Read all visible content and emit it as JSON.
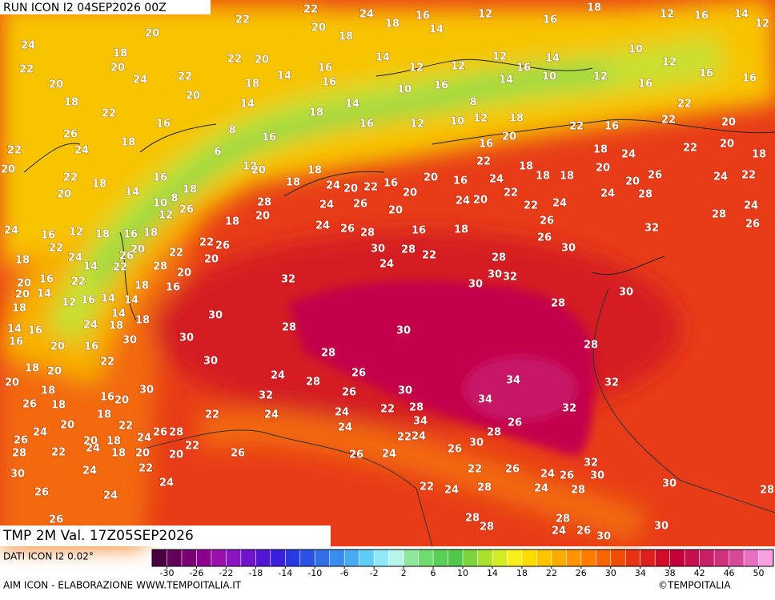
{
  "header": {
    "run": "RUN ICON I2 04SEP2026 00Z"
  },
  "map": {
    "labels": [
      22,
      24,
      16,
      14,
      12,
      16,
      18,
      12,
      16,
      14,
      12,
      22,
      20,
      18,
      18,
      24,
      18,
      20,
      22,
      20,
      22,
      20,
      20,
      24,
      22,
      14,
      16,
      18,
      14,
      12,
      12,
      12,
      16,
      14,
      10,
      12,
      16,
      16,
      18,
      22,
      16,
      20,
      14,
      16,
      14,
      10,
      16,
      8,
      14,
      10,
      12,
      16,
      22,
      26,
      24,
      18,
      8,
      16,
      18,
      16,
      12,
      10,
      12,
      18,
      22,
      16,
      22,
      20,
      22,
      20,
      22,
      20,
      18,
      14,
      16,
      8,
      18,
      6,
      12,
      20,
      18,
      18,
      24,
      20,
      22,
      16,
      20,
      20,
      16,
      22,
      16,
      24,
      20,
      18,
      18,
      18,
      18,
      20,
      20,
      24,
      26,
      22,
      20,
      18,
      24,
      22,
      24,
      26,
      28,
      28,
      24,
      24,
      22,
      22,
      26,
      26,
      20,
      24,
      18,
      16,
      20,
      26,
      24,
      28,
      20,
      18,
      22,
      26,
      20,
      10,
      12,
      26,
      24,
      16,
      12,
      18,
      16,
      18,
      20,
      26,
      22,
      20,
      28,
      16,
      18,
      14,
      22,
      14,
      24,
      22,
      18,
      16,
      22,
      20,
      20,
      18,
      14,
      12,
      16,
      14,
      14,
      24,
      18,
      18,
      14,
      16,
      16,
      20,
      16,
      22,
      30,
      30,
      30,
      30,
      30,
      32,
      28,
      24,
      26,
      28,
      30,
      24,
      28,
      22,
      28,
      30,
      32,
      30,
      30,
      32,
      28,
      30,
      28,
      32,
      30,
      28,
      24,
      28,
      26,
      26,
      32,
      30,
      28,
      34,
      34,
      34,
      32,
      26,
      22,
      24,
      24,
      24,
      22,
      18,
      20,
      20,
      18,
      26,
      18,
      16,
      20,
      18,
      22,
      24,
      26,
      28,
      20,
      24,
      26,
      20,
      18,
      28,
      22,
      24,
      18,
      20,
      20,
      22,
      26,
      30,
      22,
      24,
      24,
      26,
      24,
      26,
      26,
      24,
      22,
      24,
      26,
      30,
      28,
      22,
      26,
      22,
      24,
      28,
      24,
      26,
      30,
      32,
      28,
      24,
      30,
      28,
      28,
      28,
      28,
      24,
      26,
      30,
      30
    ]
  },
  "footer": {
    "variable": "TMP 2M Val. 17Z05SEP2026",
    "source": "DATI ICON I2 0.02°",
    "credit": "AIM ICON - ELABORAZIONE WWW.TEMPOITALIA.IT",
    "copyright": "©TEMPOITALIA"
  },
  "colorbar": {
    "lim": [
      -32,
      52
    ],
    "ticks": [
      -30,
      -26,
      -22,
      -18,
      -14,
      -10,
      -6,
      -2,
      2,
      6,
      10,
      14,
      18,
      22,
      26,
      30,
      34,
      38,
      42,
      46,
      50
    ],
    "colors": [
      "#4a0040",
      "#62005a",
      "#780074",
      "#8c0090",
      "#9a10aa",
      "#8a14c0",
      "#7014cc",
      "#5414d4",
      "#3a20dc",
      "#2a38e0",
      "#2a52e4",
      "#306ee8",
      "#3a8cee",
      "#48aaf2",
      "#60ccf8",
      "#90e8f8",
      "#b8f4e8",
      "#90e8a0",
      "#70dc70",
      "#58d058",
      "#50c84c",
      "#7cd43c",
      "#a8e030",
      "#d4ec24",
      "#f8f018",
      "#ffdc00",
      "#ffc400",
      "#ffac00",
      "#ff9400",
      "#ff7c00",
      "#f86400",
      "#f04c08",
      "#e83414",
      "#e01e1e",
      "#d00c28",
      "#c40038",
      "#c4104c",
      "#c82064",
      "#d0307c",
      "#d84898",
      "#e870c0",
      "#f8a0e0"
    ]
  }
}
